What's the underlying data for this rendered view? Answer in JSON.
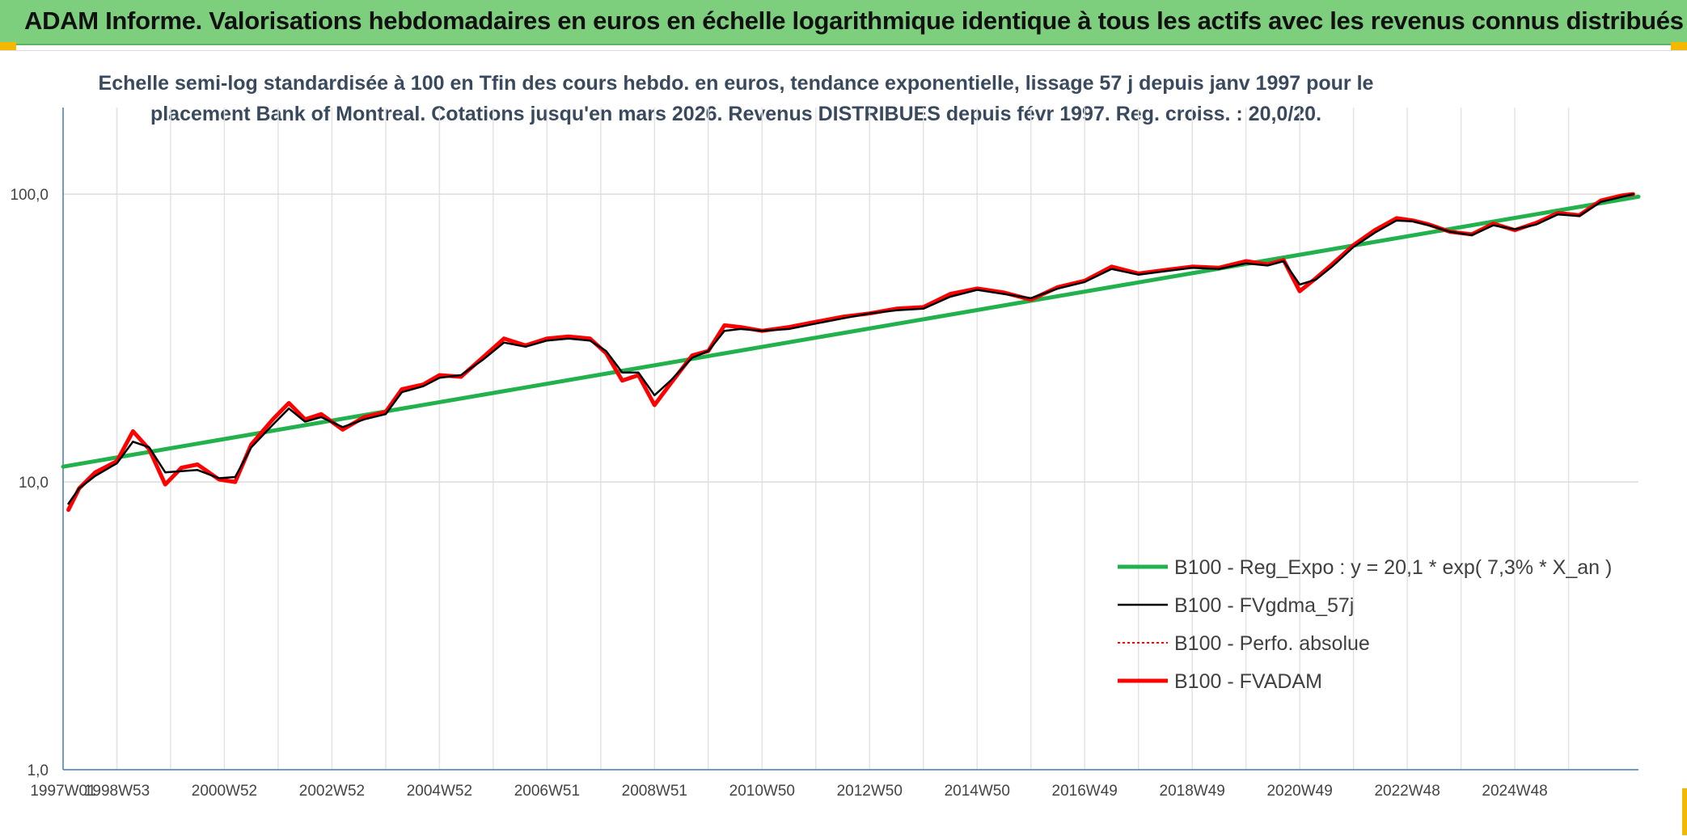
{
  "banner": {
    "title": "ADAM Informe. Valorisations hebdomadaires en euros en échelle logarithmique identique à tous les actifs avec les revenus connus distribués",
    "background": "#7dcf7d"
  },
  "chart_data": {
    "type": "line",
    "subtitle_lines": [
      "Echelle semi-log standardisée à 100 en Tfin des cours hebdo. en euros, tendance exponentielle, lissage 57 j depuis janv 1997 pour le",
      "placement Bank of Montreal. Cotations jusqu'en mars 2026. Revenus DISTRIBUES depuis févr 1997. Reg. croiss. : 20,0/20."
    ],
    "y_scale": "log",
    "ylim": [
      1,
      200
    ],
    "y_ticks": [
      {
        "value": 1,
        "label": "1,0"
      },
      {
        "value": 10,
        "label": "10,0"
      },
      {
        "value": 100,
        "label": "100,0"
      }
    ],
    "xlim": [
      1997.0,
      2026.3
    ],
    "x_ticks": [
      {
        "value": 1997.0,
        "label": "1997W01"
      },
      {
        "value": 1998.0,
        "label": "1998W53"
      },
      {
        "value": 2000.0,
        "label": "2000W52"
      },
      {
        "value": 2002.0,
        "label": "2002W52"
      },
      {
        "value": 2004.0,
        "label": "2004W52"
      },
      {
        "value": 2006.0,
        "label": "2006W51"
      },
      {
        "value": 2008.0,
        "label": "2008W51"
      },
      {
        "value": 2010.0,
        "label": "2010W50"
      },
      {
        "value": 2012.0,
        "label": "2012W50"
      },
      {
        "value": 2014.0,
        "label": "2014W50"
      },
      {
        "value": 2016.0,
        "label": "2016W49"
      },
      {
        "value": 2018.0,
        "label": "2018W49"
      },
      {
        "value": 2020.0,
        "label": "2020W49"
      },
      {
        "value": 2022.0,
        "label": "2022W48"
      },
      {
        "value": 2024.0,
        "label": "2024W48"
      }
    ],
    "grid": true,
    "legend_position": "bottom-right",
    "series": [
      {
        "name": "B100 - Reg_Expo : y = 20,1 * exp( 7,3% *  X_an )",
        "color": "#22b14c",
        "style": "solid-thick",
        "x": [
          1997.0,
          2026.3
        ],
        "values": [
          11.3,
          98
        ]
      },
      {
        "name": "B100 - FVgdma_57j",
        "color": "#000000",
        "style": "solid",
        "x": [
          1997.1,
          1997.3,
          1997.6,
          1998.0,
          1998.3,
          1998.6,
          1998.9,
          1999.2,
          1999.5,
          1999.9,
          2000.2,
          2000.5,
          2000.9,
          2001.2,
          2001.5,
          2001.8,
          2002.2,
          2002.6,
          2003.0,
          2003.3,
          2003.7,
          2004.0,
          2004.4,
          2004.8,
          2005.2,
          2005.6,
          2006.0,
          2006.4,
          2006.8,
          2007.1,
          2007.4,
          2007.7,
          2008.0,
          2008.3,
          2008.7,
          2009.0,
          2009.3,
          2009.6,
          2010.0,
          2010.5,
          2011.0,
          2011.5,
          2012.0,
          2012.5,
          2013.0,
          2013.5,
          2014.0,
          2014.5,
          2015.0,
          2015.5,
          2016.0,
          2016.5,
          2017.0,
          2017.5,
          2018.0,
          2018.5,
          2019.0,
          2019.4,
          2019.7,
          2020.0,
          2020.3,
          2020.6,
          2021.0,
          2021.4,
          2021.8,
          2022.1,
          2022.4,
          2022.8,
          2023.2,
          2023.6,
          2024.0,
          2024.4,
          2024.8,
          2025.2,
          2025.6,
          2026.0,
          2026.2
        ],
        "values": [
          8.4,
          9.5,
          10.5,
          11.6,
          13.8,
          13.2,
          10.8,
          10.9,
          11.0,
          10.3,
          10.4,
          13.2,
          15.8,
          18.0,
          16.2,
          16.8,
          15.5,
          16.5,
          17.2,
          20.5,
          21.5,
          23.0,
          23.5,
          26.5,
          30.5,
          29.5,
          31.0,
          31.5,
          31.0,
          28.5,
          24.0,
          24.0,
          20.0,
          22.5,
          27.0,
          28.5,
          33.5,
          34.0,
          33.5,
          34.0,
          35.5,
          37.0,
          38.5,
          39.5,
          40.0,
          44.0,
          46.5,
          45.0,
          43.5,
          47.0,
          49.5,
          55.0,
          52.5,
          54.0,
          55.5,
          55.0,
          57.5,
          56.5,
          58.5,
          48.5,
          50.5,
          56.0,
          65.5,
          73.5,
          81.0,
          80.5,
          78.0,
          74.0,
          72.0,
          78.0,
          75.5,
          78.5,
          85.0,
          84.0,
          94.0,
          98.0,
          100.0
        ]
      },
      {
        "name": "B100 - Perfo. absolue",
        "color": "#ff0000",
        "style": "dotted",
        "x": [
          1997.1,
          1997.3,
          1997.6,
          1998.0,
          1998.3,
          1998.6,
          1998.9,
          1999.2,
          1999.5,
          1999.9,
          2000.2,
          2000.5,
          2000.9,
          2001.2,
          2001.5,
          2001.8,
          2002.2,
          2002.6,
          2003.0,
          2003.3,
          2003.7,
          2004.0,
          2004.4,
          2004.8,
          2005.2,
          2005.6,
          2006.0,
          2006.4,
          2006.8,
          2007.1,
          2007.4,
          2007.7,
          2008.0,
          2008.3,
          2008.7,
          2009.0,
          2009.3,
          2009.6,
          2010.0,
          2010.5,
          2011.0,
          2011.5,
          2012.0,
          2012.5,
          2013.0,
          2013.5,
          2014.0,
          2014.5,
          2015.0,
          2015.5,
          2016.0,
          2016.5,
          2017.0,
          2017.5,
          2018.0,
          2018.5,
          2019.0,
          2019.4,
          2019.7,
          2020.0,
          2020.3,
          2020.6,
          2021.0,
          2021.4,
          2021.8,
          2022.1,
          2022.4,
          2022.8,
          2023.2,
          2023.6,
          2024.0,
          2024.4,
          2024.8,
          2025.2,
          2025.6,
          2026.0,
          2026.2
        ],
        "values": [
          8.0,
          9.5,
          10.8,
          11.8,
          15.0,
          13.0,
          9.8,
          11.2,
          11.5,
          10.2,
          10.0,
          13.5,
          16.5,
          18.8,
          16.5,
          17.2,
          15.2,
          16.8,
          17.5,
          21.0,
          21.8,
          23.5,
          23.2,
          27.0,
          31.5,
          29.8,
          31.5,
          32.0,
          31.5,
          28.0,
          22.5,
          23.5,
          18.5,
          22.0,
          27.5,
          28.5,
          35.0,
          34.5,
          33.5,
          34.5,
          36.0,
          37.5,
          38.5,
          40.0,
          40.5,
          45.0,
          47.0,
          45.5,
          43.0,
          47.5,
          50.0,
          56.0,
          53.0,
          54.5,
          56.0,
          55.5,
          58.5,
          57.0,
          59.0,
          46.0,
          51.0,
          57.0,
          66.5,
          75.0,
          82.5,
          81.0,
          78.5,
          74.0,
          72.5,
          79.0,
          75.0,
          79.5,
          86.0,
          84.5,
          95.0,
          99.0,
          100.0
        ]
      },
      {
        "name": "B100 - FVADAM",
        "color": "#ff0000",
        "style": "solid-thick",
        "x": [
          1997.1,
          1997.3,
          1997.6,
          1998.0,
          1998.3,
          1998.6,
          1998.9,
          1999.2,
          1999.5,
          1999.9,
          2000.2,
          2000.5,
          2000.9,
          2001.2,
          2001.5,
          2001.8,
          2002.2,
          2002.6,
          2003.0,
          2003.3,
          2003.7,
          2004.0,
          2004.4,
          2004.8,
          2005.2,
          2005.6,
          2006.0,
          2006.4,
          2006.8,
          2007.1,
          2007.4,
          2007.7,
          2008.0,
          2008.3,
          2008.7,
          2009.0,
          2009.3,
          2009.6,
          2010.0,
          2010.5,
          2011.0,
          2011.5,
          2012.0,
          2012.5,
          2013.0,
          2013.5,
          2014.0,
          2014.5,
          2015.0,
          2015.5,
          2016.0,
          2016.5,
          2017.0,
          2017.5,
          2018.0,
          2018.5,
          2019.0,
          2019.4,
          2019.7,
          2020.0,
          2020.3,
          2020.6,
          2021.0,
          2021.4,
          2021.8,
          2022.1,
          2022.4,
          2022.8,
          2023.2,
          2023.6,
          2024.0,
          2024.4,
          2024.8,
          2025.2,
          2025.6,
          2026.0,
          2026.2
        ],
        "values": [
          8.0,
          9.5,
          10.8,
          11.8,
          15.0,
          13.0,
          9.8,
          11.2,
          11.5,
          10.2,
          10.0,
          13.5,
          16.5,
          18.8,
          16.5,
          17.2,
          15.2,
          16.8,
          17.5,
          21.0,
          21.8,
          23.5,
          23.2,
          27.0,
          31.5,
          29.8,
          31.5,
          32.0,
          31.5,
          28.0,
          22.5,
          23.5,
          18.5,
          22.0,
          27.5,
          28.5,
          35.0,
          34.5,
          33.5,
          34.5,
          36.0,
          37.5,
          38.5,
          40.0,
          40.5,
          45.0,
          47.0,
          45.5,
          43.0,
          47.5,
          50.0,
          56.0,
          53.0,
          54.5,
          56.0,
          55.5,
          58.5,
          57.0,
          59.0,
          46.0,
          51.0,
          57.0,
          66.5,
          75.0,
          82.5,
          81.0,
          78.5,
          74.0,
          72.5,
          79.0,
          75.0,
          79.5,
          86.0,
          84.5,
          95.0,
          99.0,
          100.0
        ]
      }
    ]
  }
}
